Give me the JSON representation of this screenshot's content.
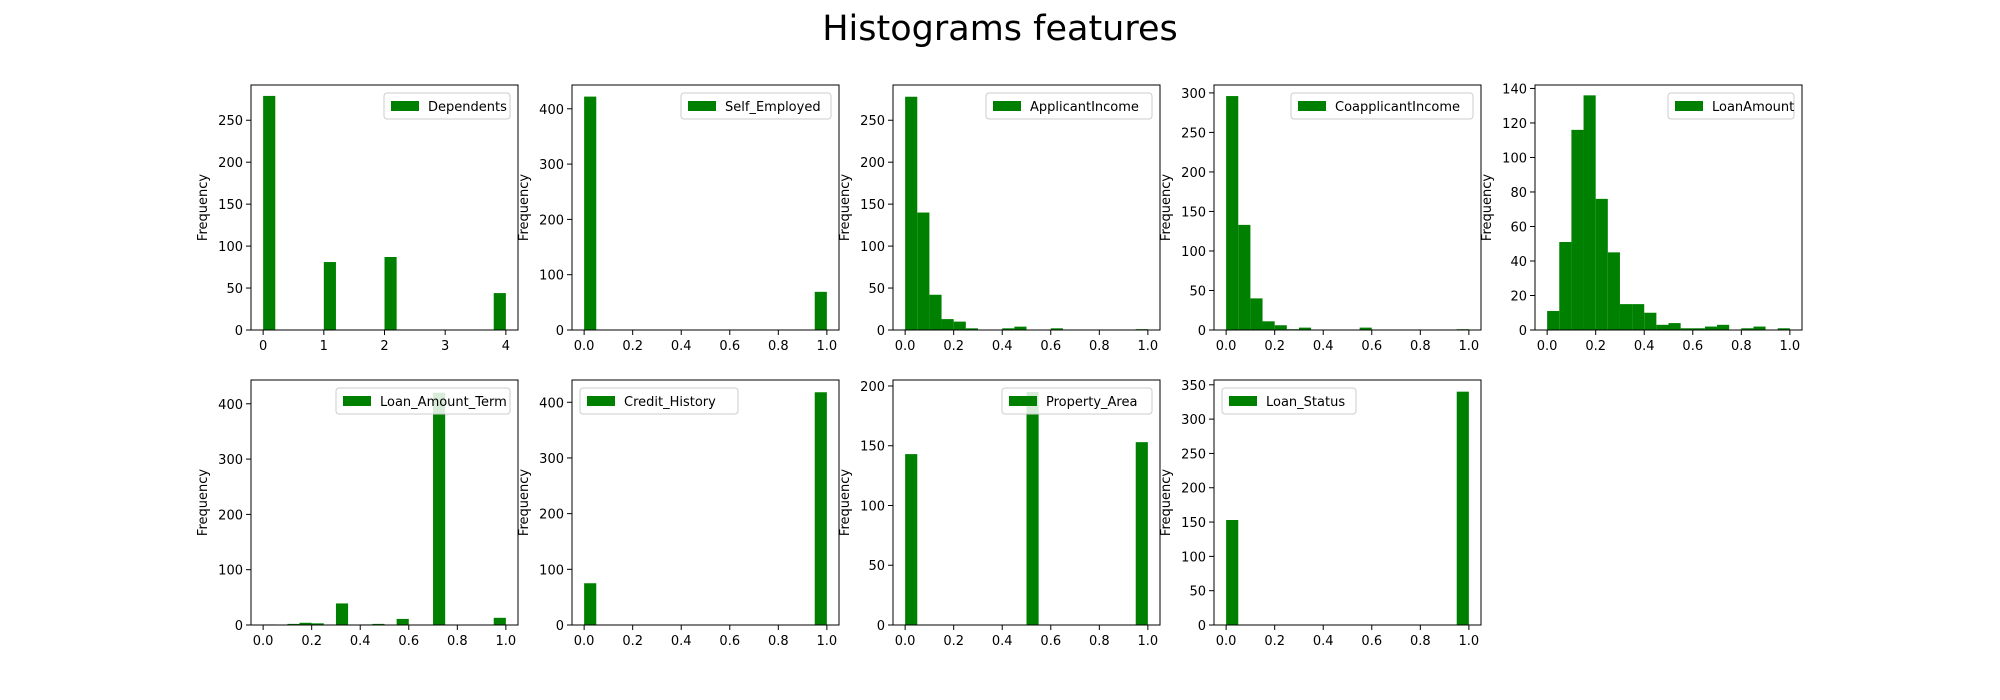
{
  "figure": {
    "title": "Histograms features",
    "bar_color": "#008000"
  },
  "chart_data": [
    {
      "type": "bar",
      "name": "Dependents",
      "legend": "Dependents",
      "ylabel": "Frequency",
      "xlim": [
        -0.2,
        4.2
      ],
      "ylim": [
        0,
        292
      ],
      "xticks": [
        0,
        1,
        2,
        3,
        4
      ],
      "xtick_labels": [
        "0",
        "1",
        "2",
        "3",
        "4"
      ],
      "yticks": [
        0,
        50,
        100,
        150,
        200,
        250
      ],
      "ytick_labels": [
        "0",
        "50",
        "100",
        "150",
        "200",
        "250"
      ],
      "legend_loc": "upper right",
      "bins": [
        [
          0,
          0.2,
          279
        ],
        [
          1,
          1.2,
          81
        ],
        [
          2,
          2.2,
          87
        ],
        [
          3.8,
          4,
          44
        ]
      ]
    },
    {
      "type": "bar",
      "name": "Self_Employed",
      "legend": "Self_Employed",
      "ylabel": "Frequency",
      "xlim": [
        -0.05,
        1.05
      ],
      "ylim": [
        0,
        443
      ],
      "xticks": [
        0,
        0.2,
        0.4,
        0.6,
        0.8,
        1
      ],
      "xtick_labels": [
        "0.0",
        "0.2",
        "0.4",
        "0.6",
        "0.8",
        "1.0"
      ],
      "yticks": [
        0,
        100,
        200,
        300,
        400
      ],
      "ytick_labels": [
        "0",
        "100",
        "200",
        "300",
        "400"
      ],
      "legend_loc": "upper right",
      "bins": [
        [
          0,
          0.05,
          422
        ],
        [
          0.95,
          1,
          69
        ]
      ]
    },
    {
      "type": "bar",
      "name": "ApplicantIncome",
      "legend": "ApplicantIncome",
      "ylabel": "Frequency",
      "xlim": [
        -0.05,
        1.05
      ],
      "ylim": [
        0,
        292
      ],
      "xticks": [
        0,
        0.2,
        0.4,
        0.6,
        0.8,
        1
      ],
      "xtick_labels": [
        "0.0",
        "0.2",
        "0.4",
        "0.6",
        "0.8",
        "1.0"
      ],
      "yticks": [
        0,
        50,
        100,
        150,
        200,
        250
      ],
      "ytick_labels": [
        "0",
        "50",
        "100",
        "150",
        "200",
        "250"
      ],
      "legend_loc": "upper right",
      "bins": [
        [
          0,
          0.05,
          278
        ],
        [
          0.05,
          0.1,
          140
        ],
        [
          0.1,
          0.15,
          42
        ],
        [
          0.15,
          0.2,
          13
        ],
        [
          0.2,
          0.25,
          10
        ],
        [
          0.25,
          0.3,
          2
        ],
        [
          0.4,
          0.45,
          2
        ],
        [
          0.45,
          0.5,
          4
        ],
        [
          0.6,
          0.65,
          2
        ],
        [
          0.95,
          1,
          1
        ]
      ]
    },
    {
      "type": "bar",
      "name": "CoapplicantIncome",
      "legend": "CoapplicantIncome",
      "ylabel": "Frequency",
      "xlim": [
        -0.05,
        1.05
      ],
      "ylim": [
        0,
        310
      ],
      "xticks": [
        0,
        0.2,
        0.4,
        0.6,
        0.8,
        1
      ],
      "xtick_labels": [
        "0.0",
        "0.2",
        "0.4",
        "0.6",
        "0.8",
        "1.0"
      ],
      "yticks": [
        0,
        50,
        100,
        150,
        200,
        250,
        300
      ],
      "ytick_labels": [
        "0",
        "50",
        "100",
        "150",
        "200",
        "250",
        "300"
      ],
      "legend_loc": "upper right",
      "bins": [
        [
          0,
          0.05,
          296
        ],
        [
          0.05,
          0.1,
          133
        ],
        [
          0.1,
          0.15,
          40
        ],
        [
          0.15,
          0.2,
          11
        ],
        [
          0.2,
          0.25,
          6
        ],
        [
          0.25,
          0.3,
          1
        ],
        [
          0.3,
          0.35,
          3
        ],
        [
          0.55,
          0.6,
          3
        ],
        [
          0.95,
          1,
          1
        ]
      ]
    },
    {
      "type": "bar",
      "name": "LoanAmount",
      "legend": "LoanAmount",
      "ylabel": "Frequency",
      "xlim": [
        -0.05,
        1.05
      ],
      "ylim": [
        0,
        142
      ],
      "xticks": [
        0,
        0.2,
        0.4,
        0.6,
        0.8,
        1
      ],
      "xtick_labels": [
        "0.0",
        "0.2",
        "0.4",
        "0.6",
        "0.8",
        "1.0"
      ],
      "yticks": [
        0,
        20,
        40,
        60,
        80,
        100,
        120,
        140
      ],
      "ytick_labels": [
        "0",
        "20",
        "40",
        "60",
        "80",
        "100",
        "120",
        "140"
      ],
      "legend_loc": "upper right",
      "bins": [
        [
          0,
          0.05,
          11
        ],
        [
          0.05,
          0.1,
          51
        ],
        [
          0.1,
          0.15,
          116
        ],
        [
          0.15,
          0.2,
          136
        ],
        [
          0.2,
          0.25,
          76
        ],
        [
          0.25,
          0.3,
          45
        ],
        [
          0.3,
          0.35,
          15
        ],
        [
          0.35,
          0.4,
          15
        ],
        [
          0.4,
          0.45,
          10
        ],
        [
          0.45,
          0.5,
          3
        ],
        [
          0.5,
          0.55,
          4
        ],
        [
          0.55,
          0.6,
          1
        ],
        [
          0.6,
          0.65,
          1
        ],
        [
          0.65,
          0.7,
          2
        ],
        [
          0.7,
          0.75,
          3
        ],
        [
          0.8,
          0.85,
          1
        ],
        [
          0.85,
          0.9,
          2
        ],
        [
          0.95,
          1,
          1
        ]
      ]
    },
    {
      "type": "bar",
      "name": "Loan_Amount_Term",
      "legend": "Loan_Amount_Term",
      "ylabel": "Frequency",
      "xlim": [
        -0.05,
        1.05
      ],
      "ylim": [
        0,
        443
      ],
      "xticks": [
        0,
        0.2,
        0.4,
        0.6,
        0.8,
        1
      ],
      "xtick_labels": [
        "0.0",
        "0.2",
        "0.4",
        "0.6",
        "0.8",
        "1.0"
      ],
      "yticks": [
        0,
        100,
        200,
        300,
        400
      ],
      "ytick_labels": [
        "0",
        "100",
        "200",
        "300",
        "400"
      ],
      "legend_loc": "upper right",
      "bins": [
        [
          0,
          0.05,
          1
        ],
        [
          0.1,
          0.15,
          2
        ],
        [
          0.15,
          0.2,
          4
        ],
        [
          0.2,
          0.25,
          3
        ],
        [
          0.3,
          0.35,
          39
        ],
        [
          0.4,
          0.45,
          1
        ],
        [
          0.45,
          0.5,
          2
        ],
        [
          0.55,
          0.6,
          11
        ],
        [
          0.7,
          0.75,
          420
        ],
        [
          0.95,
          1,
          13
        ]
      ]
    },
    {
      "type": "bar",
      "name": "Credit_History",
      "legend": "Credit_History",
      "ylabel": "Frequency",
      "xlim": [
        -0.05,
        1.05
      ],
      "ylim": [
        0,
        440
      ],
      "xticks": [
        0,
        0.2,
        0.4,
        0.6,
        0.8,
        1
      ],
      "xtick_labels": [
        "0.0",
        "0.2",
        "0.4",
        "0.6",
        "0.8",
        "1.0"
      ],
      "yticks": [
        0,
        100,
        200,
        300,
        400
      ],
      "ytick_labels": [
        "0",
        "100",
        "200",
        "300",
        "400"
      ],
      "legend_loc": "upper left",
      "bins": [
        [
          0,
          0.05,
          75
        ],
        [
          0.95,
          1,
          418
        ]
      ]
    },
    {
      "type": "bar",
      "name": "Property_Area",
      "legend": "Property_Area",
      "ylabel": "Frequency",
      "xlim": [
        -0.05,
        1.05
      ],
      "ylim": [
        0,
        205
      ],
      "xticks": [
        0,
        0.2,
        0.4,
        0.6,
        0.8,
        1
      ],
      "xtick_labels": [
        "0.0",
        "0.2",
        "0.4",
        "0.6",
        "0.8",
        "1.0"
      ],
      "yticks": [
        0,
        50,
        100,
        150,
        200
      ],
      "ytick_labels": [
        "0",
        "50",
        "100",
        "150",
        "200"
      ],
      "legend_loc": "upper right",
      "bins": [
        [
          0,
          0.05,
          143
        ],
        [
          0.5,
          0.55,
          195
        ],
        [
          0.95,
          1,
          153
        ]
      ]
    },
    {
      "type": "bar",
      "name": "Loan_Status",
      "legend": "Loan_Status",
      "ylabel": "Frequency",
      "xlim": [
        -0.05,
        1.05
      ],
      "ylim": [
        0,
        357
      ],
      "xticks": [
        0,
        0.2,
        0.4,
        0.6,
        0.8,
        1
      ],
      "xtick_labels": [
        "0.0",
        "0.2",
        "0.4",
        "0.6",
        "0.8",
        "1.0"
      ],
      "yticks": [
        0,
        50,
        100,
        150,
        200,
        250,
        300,
        350
      ],
      "ytick_labels": [
        "0",
        "50",
        "100",
        "150",
        "200",
        "250",
        "300",
        "350"
      ],
      "legend_loc": "upper left",
      "bins": [
        [
          0,
          0.05,
          153
        ],
        [
          0.95,
          1,
          340
        ]
      ]
    }
  ]
}
